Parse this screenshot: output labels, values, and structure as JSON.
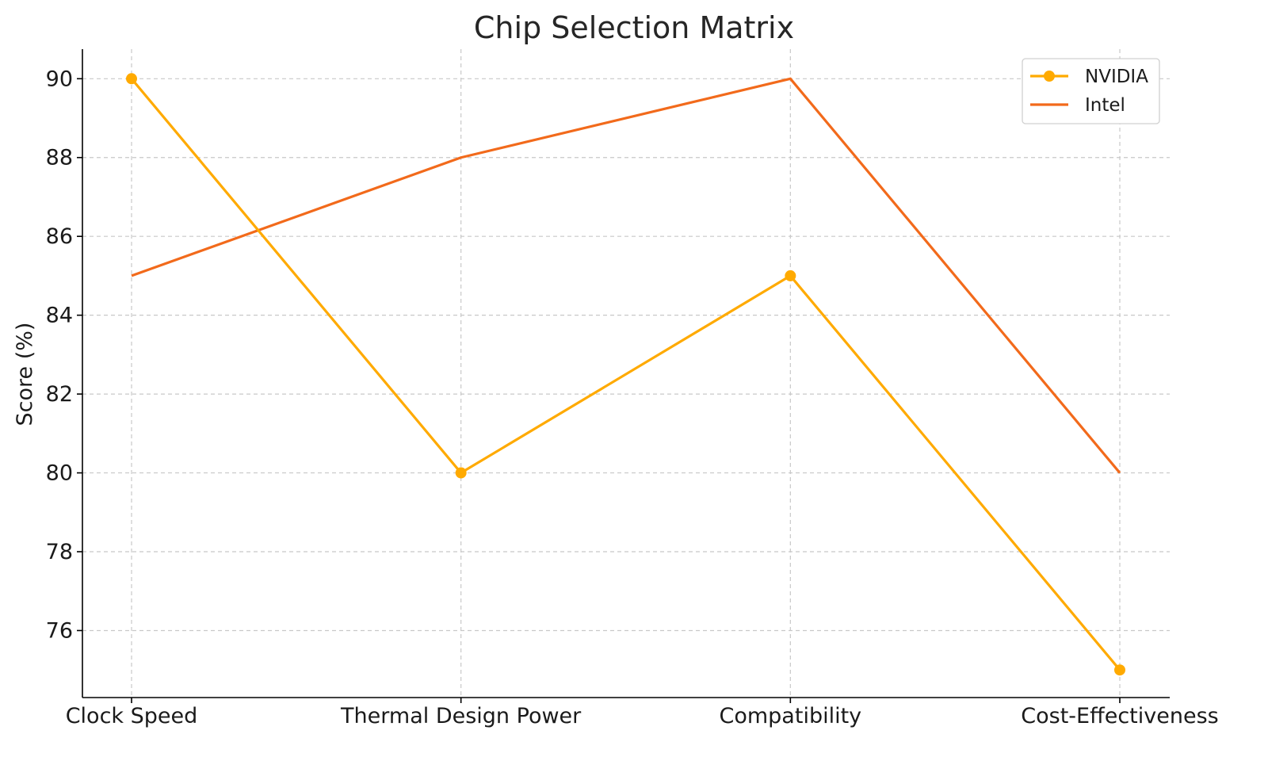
{
  "chart_data": {
    "type": "line",
    "title": "Chip Selection Matrix",
    "xlabel": "",
    "ylabel": "Score (%)",
    "categories": [
      "Clock Speed",
      "Thermal Design Power",
      "Compatibility",
      "Cost-Effectiveness"
    ],
    "ylim": [
      74.3,
      90.75
    ],
    "yticks": [
      76,
      78,
      80,
      82,
      84,
      86,
      88,
      90
    ],
    "grid": true,
    "legend_position": "top-right",
    "series": [
      {
        "name": "NVIDIA",
        "values": [
          90,
          80,
          85,
          75
        ],
        "color": "#FFAA00",
        "markers": true
      },
      {
        "name": "Intel",
        "values": [
          85,
          88,
          90,
          80
        ],
        "color": "#F26A1B",
        "markers": false
      }
    ]
  }
}
